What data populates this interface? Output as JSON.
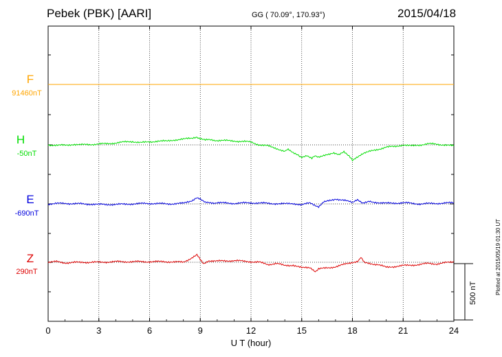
{
  "header": {
    "station": "Pebek (PBK)  [AARI]",
    "coords": "GG ( 70.09°, 170.93°)",
    "date": "2015/04/18"
  },
  "footer": {
    "plotted": "Plotted at 2015/05/19 01:30 UT",
    "scale": "500 nT"
  },
  "chart_data": {
    "type": "line",
    "title": "",
    "xlabel": "U T (hour)",
    "ylabel": "",
    "xlim": [
      0,
      24
    ],
    "xticks": [
      0,
      3,
      6,
      9,
      12,
      15,
      18,
      21,
      24
    ],
    "grid": true,
    "scale_bar_nT": 500,
    "series": [
      {
        "name": "F",
        "baseline_label": "91460nT",
        "color": "#ffa500",
        "x": [
          0,
          3,
          6,
          9,
          12,
          15,
          18,
          21,
          24
        ],
        "values": [
          0,
          0,
          0,
          0,
          0,
          0,
          0,
          0,
          0
        ]
      },
      {
        "name": "H",
        "baseline_label": "-50nT",
        "color": "#00dd00",
        "x": [
          0,
          1,
          1.5,
          2,
          3,
          3.5,
          4,
          4.5,
          5,
          5.5,
          6,
          6.5,
          7,
          7.5,
          8,
          8.5,
          8.8,
          9,
          9.3,
          10,
          11,
          12,
          12.5,
          13,
          13.5,
          14,
          14.2,
          14.5,
          14.8,
          15,
          15.3,
          15.6,
          15.8,
          16,
          16.3,
          16.6,
          16.9,
          17.2,
          17.5,
          17.8,
          18,
          18.3,
          18.6,
          19,
          19.5,
          20,
          20.5,
          21,
          21.5,
          22,
          22.5,
          23,
          23.5,
          24
        ],
        "values": [
          0,
          -5,
          5,
          0,
          8,
          10,
          18,
          25,
          30,
          20,
          25,
          35,
          32,
          45,
          50,
          60,
          70,
          55,
          45,
          40,
          35,
          25,
          0,
          -10,
          -30,
          -60,
          -40,
          -70,
          -90,
          -110,
          -95,
          -120,
          -100,
          -105,
          -90,
          -80,
          -70,
          -85,
          -60,
          -100,
          -140,
          -110,
          -80,
          -60,
          -40,
          -20,
          -15,
          0,
          -10,
          0,
          10,
          5,
          0,
          -10
        ]
      },
      {
        "name": "E",
        "baseline_label": "-690nT",
        "color": "#0000dd",
        "x": [
          0,
          1,
          2,
          3,
          4,
          5,
          6,
          7,
          8,
          8.5,
          8.8,
          9,
          9.3,
          10,
          11,
          12,
          13,
          14,
          14.5,
          15,
          15.5,
          16,
          16.3,
          16.6,
          17,
          17.5,
          18,
          18.3,
          18.6,
          19,
          20,
          21,
          22,
          23,
          24
        ],
        "values": [
          0,
          5,
          0,
          -5,
          -5,
          0,
          5,
          0,
          5,
          30,
          60,
          40,
          10,
          10,
          5,
          10,
          5,
          0,
          5,
          -10,
          10,
          -25,
          20,
          30,
          45,
          30,
          15,
          40,
          10,
          20,
          5,
          10,
          0,
          5,
          10
        ]
      },
      {
        "name": "Z",
        "baseline_label": "290nT",
        "color": "#dd0000",
        "x": [
          0,
          0.5,
          1,
          2,
          3,
          4,
          5,
          6,
          7,
          8,
          8.5,
          8.8,
          9,
          9.2,
          9.5,
          10,
          11,
          12,
          12.5,
          13,
          13.5,
          14,
          14.5,
          15,
          15.5,
          15.8,
          16,
          16.5,
          17,
          17.5,
          18,
          18.3,
          18.5,
          18.7,
          19,
          19.5,
          20,
          21,
          22,
          22.5,
          23,
          23.5,
          24
        ],
        "values": [
          0,
          5,
          -5,
          0,
          0,
          5,
          5,
          5,
          5,
          0,
          40,
          70,
          20,
          -10,
          15,
          10,
          15,
          5,
          0,
          -20,
          -10,
          -30,
          -25,
          -50,
          -45,
          -80,
          -60,
          -50,
          -40,
          -20,
          0,
          10,
          40,
          0,
          -10,
          -20,
          -45,
          -30,
          -20,
          -10,
          -15,
          -5,
          5
        ]
      }
    ]
  }
}
